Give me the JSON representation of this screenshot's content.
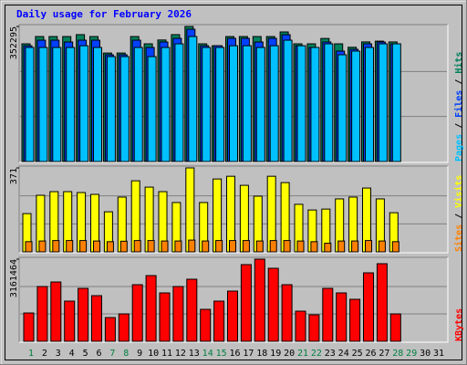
{
  "title": "Daily usage for February 2026",
  "legend_separator": " / ",
  "chart_data": [
    {
      "type": "bar",
      "ylim": [
        0,
        352295
      ],
      "yticks": [
        352295
      ],
      "series": [
        {
          "name": "Hits",
          "color": "#00805c",
          "values": [
            307000,
            326000,
            326000,
            326000,
            331000,
            326000,
            283000,
            283000,
            326000,
            307000,
            317000,
            331000,
            352295,
            307000,
            302000,
            326000,
            326000,
            326000,
            326000,
            338000,
            307000,
            307000,
            321000,
            307000,
            298000,
            312000,
            314000,
            312000,
            null,
            null,
            null
          ]
        },
        {
          "name": "Files",
          "color": "#0040ff",
          "values": [
            302000,
            316500,
            316500,
            311800,
            316500,
            316500,
            278500,
            278500,
            316500,
            297500,
            311800,
            321300,
            345100,
            302000,
            302000,
            321300,
            321300,
            311800,
            321300,
            330800,
            302000,
            297500,
            311800,
            288000,
            292700,
            307000,
            311800,
            307000,
            null,
            null,
            null
          ]
        },
        {
          "name": "Pages",
          "color": "#00c0ff",
          "values": [
            297500,
            297500,
            297500,
            297500,
            302000,
            297500,
            273700,
            273700,
            297500,
            273700,
            297500,
            307000,
            326000,
            297500,
            297500,
            302000,
            302000,
            297500,
            302000,
            316500,
            302000,
            297500,
            307000,
            278500,
            288000,
            297500,
            307000,
            307000,
            null,
            null,
            null
          ]
        }
      ]
    },
    {
      "type": "bar",
      "ylim": [
        0,
        371
      ],
      "yticks": [
        371
      ],
      "series": [
        {
          "name": "Visits",
          "color": "#ffff00",
          "values": [
            169,
            250,
            266,
            266,
            262,
            254,
            177,
            242,
            314,
            286,
            266,
            218,
            371,
            218,
            322,
            334,
            294,
            246,
            334,
            306,
            210,
            185,
            189,
            234,
            242,
            282,
            234,
            173,
            null,
            null,
            null
          ]
        },
        {
          "name": "Sites",
          "color": "#ff8000",
          "values": [
            45,
            48,
            50,
            50,
            50,
            48,
            45,
            47,
            50,
            50,
            48,
            48,
            52,
            48,
            50,
            50,
            50,
            48,
            50,
            50,
            48,
            45,
            38,
            48,
            48,
            50,
            48,
            45,
            null,
            null,
            null
          ]
        }
      ]
    },
    {
      "type": "bar",
      "ylim": [
        0,
        3161464
      ],
      "yticks": [
        3161464
      ],
      "categories": [
        1,
        2,
        3,
        4,
        5,
        6,
        7,
        8,
        9,
        10,
        11,
        12,
        13,
        14,
        15,
        16,
        17,
        18,
        19,
        20,
        21,
        22,
        23,
        24,
        25,
        26,
        27,
        28,
        29,
        30,
        31
      ],
      "category_colors": [
        "#008040",
        "#000000",
        "#000000",
        "#000000",
        "#000000",
        "#000000",
        "#008040",
        "#008040",
        "#000000",
        "#000000",
        "#000000",
        "#000000",
        "#000000",
        "#008040",
        "#008040",
        "#000000",
        "#000000",
        "#000000",
        "#000000",
        "#000000",
        "#008040",
        "#008040",
        "#000000",
        "#000000",
        "#000000",
        "#000000",
        "#000000",
        "#008040",
        "#008040",
        "#000000",
        "#000000"
      ],
      "series": [
        {
          "name": "KBytes",
          "color": "#ff0000",
          "values": [
            1089000,
            2108000,
            2283000,
            1546000,
            2037000,
            1756000,
            913000,
            1054000,
            2178000,
            2529000,
            1862000,
            2108000,
            2389000,
            1229000,
            1546000,
            1932000,
            2951000,
            3161464,
            2810000,
            2178000,
            1159000,
            1019000,
            2037000,
            1862000,
            1616000,
            2635000,
            2986000,
            1054000,
            null,
            null,
            null
          ]
        }
      ]
    }
  ]
}
